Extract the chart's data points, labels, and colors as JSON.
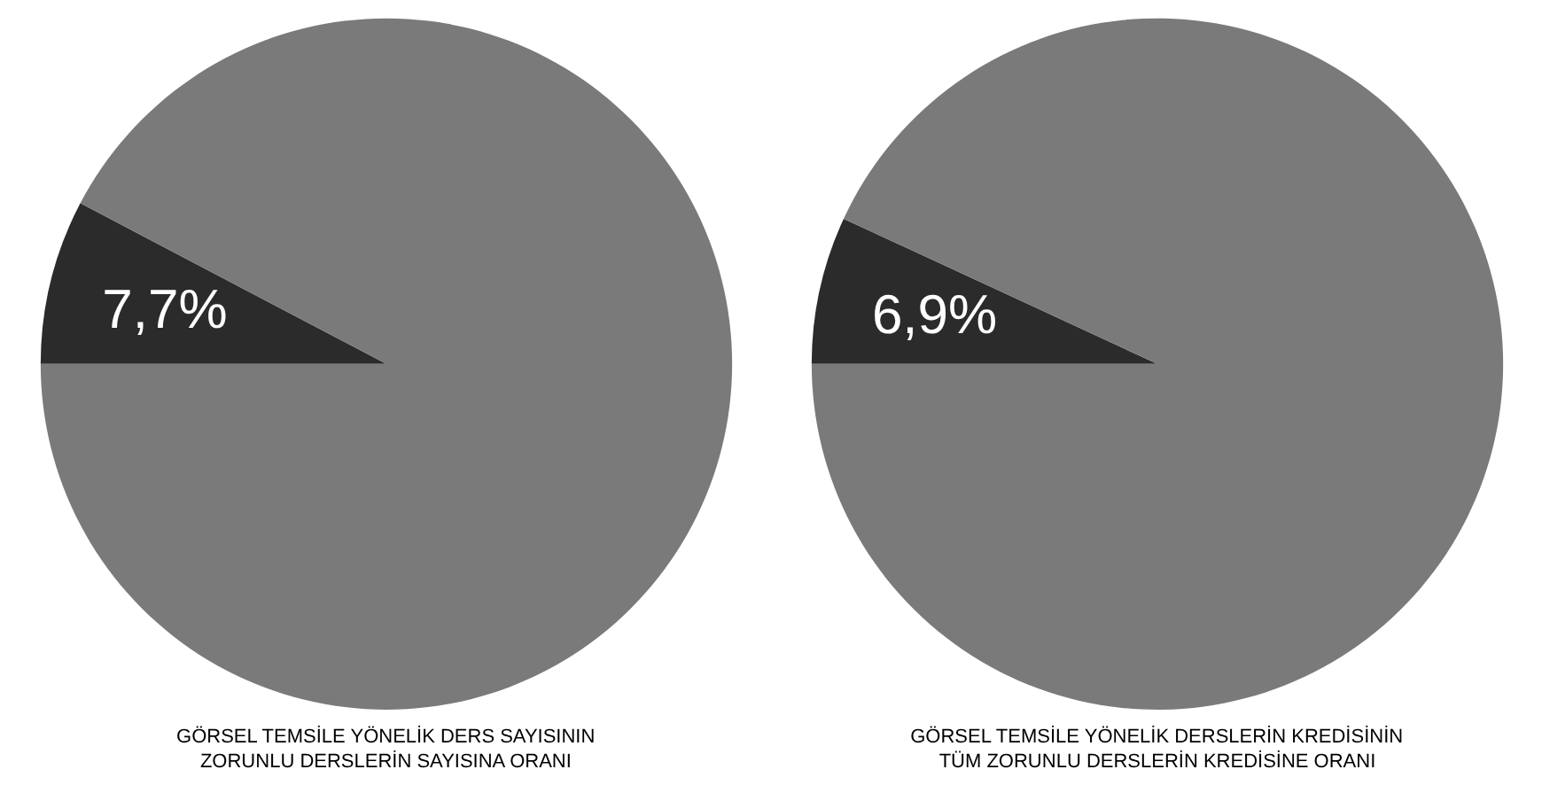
{
  "chart_data": [
    {
      "type": "pie",
      "title": "GÖRSEL TEMSİLE YÖNELİK DERS SAYISININ\nZORUNLU DERSLERİN SAYISINA ORANI",
      "categories": [
        null,
        null
      ],
      "values": [
        7.7,
        92.3
      ],
      "colors": [
        "#2b2b2b",
        "#7a7a7a"
      ],
      "value_labels": [
        "7,7%",
        null
      ]
    },
    {
      "type": "pie",
      "title": "GÖRSEL TEMSİLE YÖNELİK DERSLERİN KREDİSİNİN\nTÜM ZORUNLU DERSLERİN KREDİSİNE ORANI",
      "categories": [
        null,
        null
      ],
      "values": [
        6.9,
        93.1
      ],
      "colors": [
        "#2b2b2b",
        "#7a7a7a"
      ],
      "value_labels": [
        "6,9%",
        null
      ]
    }
  ]
}
